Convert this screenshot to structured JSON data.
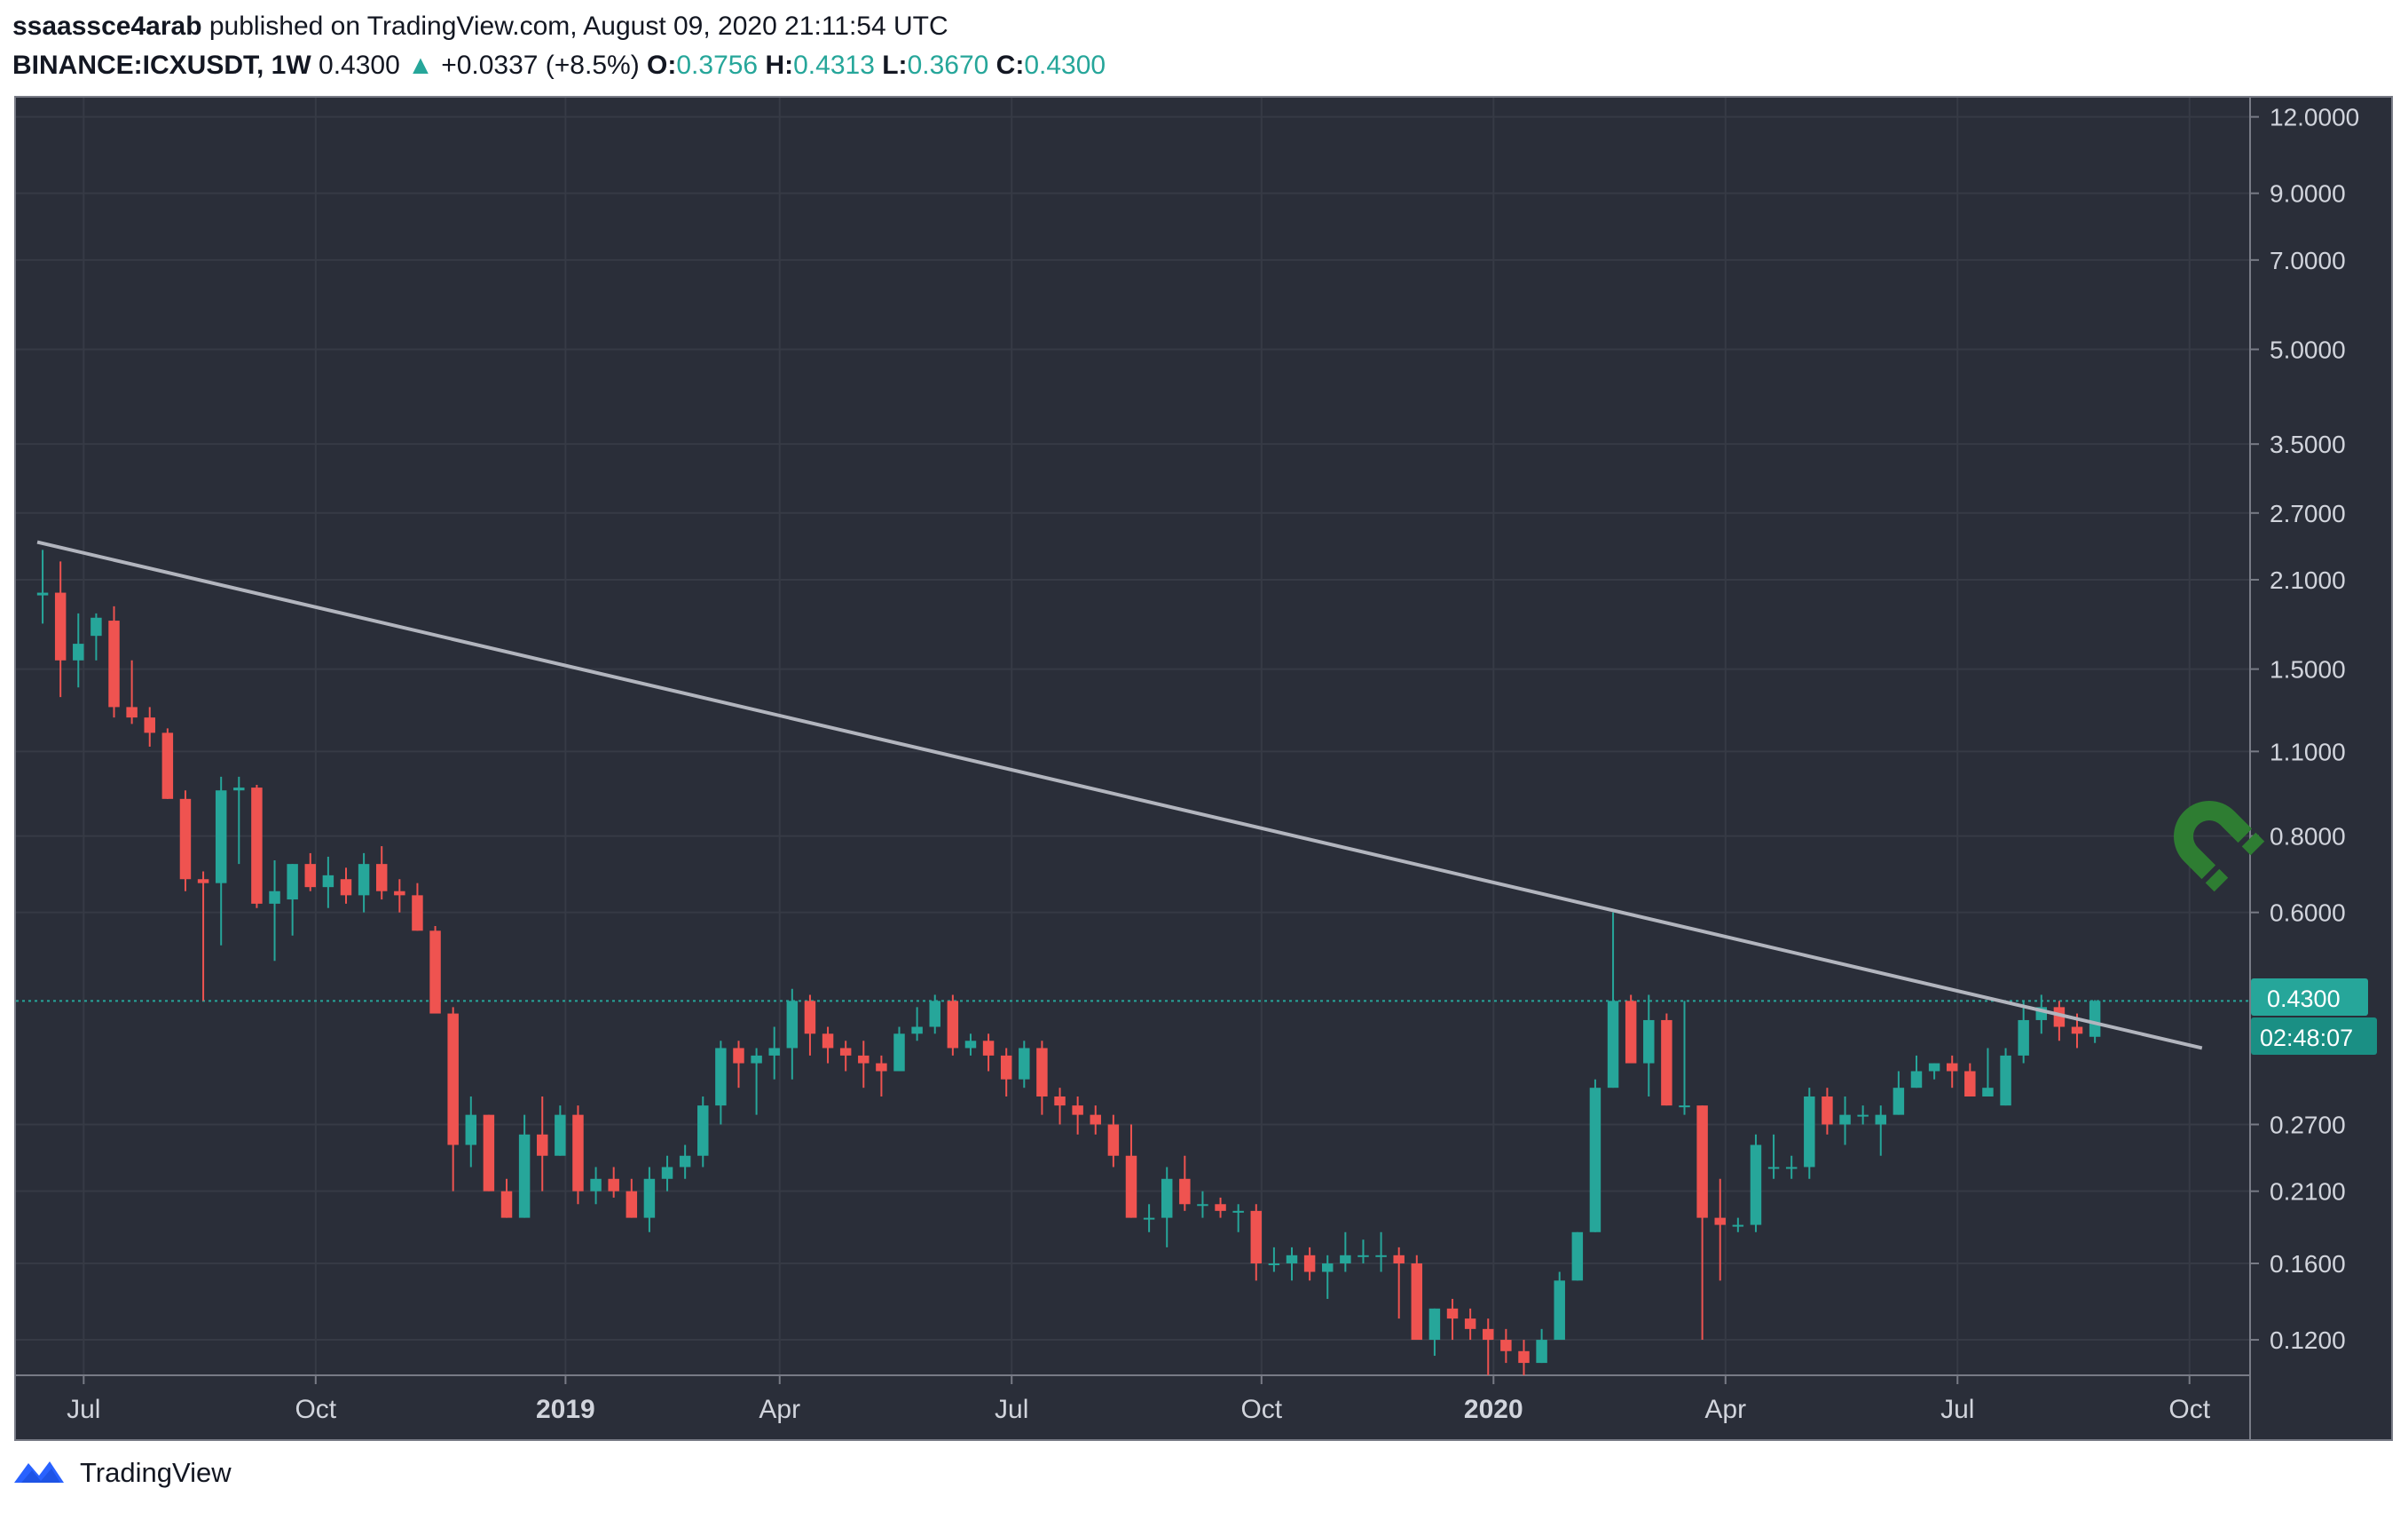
{
  "header": {
    "author": "ssaassce4arab",
    "published_text": "published on TradingView.com, August 09, 2020 21:11:54 UTC",
    "symbol": "BINANCE:ICXUSDT, 1W",
    "last": "0.4300",
    "arrow": "▲",
    "change": "+0.0337 (+8.5%)",
    "o_label": "O:",
    "o_value": "0.3756",
    "h_label": "H:",
    "h_value": "0.4313",
    "l_label": "L:",
    "l_value": "0.3670",
    "c_label": "C:",
    "c_value": "0.4300"
  },
  "footer": {
    "brand": "TradingView",
    "logo_icon": "tradingview-logo-icon"
  },
  "watermark_icon": "magnet-icon",
  "colors": {
    "background": "#2a2e39",
    "grid": "#363a45",
    "up": "#26a69a",
    "down": "#ef5350",
    "trendline": "#b2b5be",
    "axis_text": "#d1d4dc"
  },
  "chart_data": {
    "type": "candlestick",
    "scale": "log",
    "interval": "1W",
    "ylim": [
      0.105,
      12.9
    ],
    "y_ticks": [
      "12.0000",
      "9.0000",
      "7.0000",
      "5.0000",
      "3.5000",
      "2.7000",
      "2.1000",
      "1.5000",
      "1.1000",
      "0.8000",
      "0.6000",
      "0.2700",
      "0.2100",
      "0.1600",
      "0.1200"
    ],
    "hidden_tick_labels": [
      "0.4500",
      "0.3500"
    ],
    "x_ticks": [
      {
        "label": "Jul",
        "bold": false,
        "index": 2.3
      },
      {
        "label": "Oct",
        "bold": false,
        "index": 15.3
      },
      {
        "label": "2019",
        "bold": true,
        "index": 29.3
      },
      {
        "label": "Apr",
        "bold": false,
        "index": 41.3
      },
      {
        "label": "Jul",
        "bold": false,
        "index": 54.3
      },
      {
        "label": "Oct",
        "bold": false,
        "index": 68.3
      },
      {
        "label": "2020",
        "bold": true,
        "index": 81.3
      },
      {
        "label": "Apr",
        "bold": false,
        "index": 94.3
      },
      {
        "label": "Jul",
        "bold": false,
        "index": 107.3
      },
      {
        "label": "Oct",
        "bold": false,
        "index": 120.3
      }
    ],
    "price_label": "0.4300",
    "countdown_label": "02:48:07",
    "last_price": 0.43,
    "trendline": {
      "from": {
        "index": -0.3,
        "value": 2.42
      },
      "to": {
        "index": 121,
        "value": 0.36
      }
    },
    "candles": [
      [
        1.98,
        2.35,
        1.78,
        2.0
      ],
      [
        2.0,
        2.25,
        1.35,
        1.55
      ],
      [
        1.55,
        1.85,
        1.4,
        1.65
      ],
      [
        1.7,
        1.85,
        1.55,
        1.82
      ],
      [
        1.8,
        1.9,
        1.25,
        1.3
      ],
      [
        1.3,
        1.55,
        1.22,
        1.25
      ],
      [
        1.25,
        1.3,
        1.12,
        1.18
      ],
      [
        1.18,
        1.2,
        0.92,
        0.92
      ],
      [
        0.92,
        0.95,
        0.65,
        0.68
      ],
      [
        0.68,
        0.7,
        0.43,
        0.67
      ],
      [
        0.67,
        1.0,
        0.53,
        0.95
      ],
      [
        0.95,
        1.0,
        0.72,
        0.96
      ],
      [
        0.96,
        0.97,
        0.61,
        0.62
      ],
      [
        0.62,
        0.73,
        0.5,
        0.65
      ],
      [
        0.63,
        0.72,
        0.55,
        0.72
      ],
      [
        0.72,
        0.75,
        0.65,
        0.66
      ],
      [
        0.66,
        0.74,
        0.61,
        0.69
      ],
      [
        0.68,
        0.71,
        0.62,
        0.64
      ],
      [
        0.64,
        0.75,
        0.6,
        0.72
      ],
      [
        0.72,
        0.77,
        0.63,
        0.65
      ],
      [
        0.65,
        0.68,
        0.6,
        0.64
      ],
      [
        0.64,
        0.67,
        0.56,
        0.56
      ],
      [
        0.56,
        0.57,
        0.41,
        0.41
      ],
      [
        0.41,
        0.42,
        0.21,
        0.25
      ],
      [
        0.25,
        0.3,
        0.23,
        0.28
      ],
      [
        0.28,
        0.28,
        0.21,
        0.21
      ],
      [
        0.21,
        0.22,
        0.19,
        0.19
      ],
      [
        0.19,
        0.28,
        0.19,
        0.26
      ],
      [
        0.26,
        0.3,
        0.21,
        0.24
      ],
      [
        0.24,
        0.29,
        0.24,
        0.28
      ],
      [
        0.28,
        0.29,
        0.2,
        0.21
      ],
      [
        0.21,
        0.23,
        0.2,
        0.22
      ],
      [
        0.22,
        0.23,
        0.205,
        0.21
      ],
      [
        0.21,
        0.22,
        0.19,
        0.19
      ],
      [
        0.19,
        0.23,
        0.18,
        0.22
      ],
      [
        0.22,
        0.24,
        0.21,
        0.23
      ],
      [
        0.23,
        0.25,
        0.22,
        0.24
      ],
      [
        0.24,
        0.3,
        0.23,
        0.29
      ],
      [
        0.29,
        0.37,
        0.27,
        0.36
      ],
      [
        0.36,
        0.37,
        0.31,
        0.34
      ],
      [
        0.34,
        0.36,
        0.28,
        0.35
      ],
      [
        0.35,
        0.39,
        0.32,
        0.36
      ],
      [
        0.36,
        0.45,
        0.32,
        0.43
      ],
      [
        0.43,
        0.44,
        0.35,
        0.38
      ],
      [
        0.38,
        0.39,
        0.34,
        0.36
      ],
      [
        0.36,
        0.37,
        0.33,
        0.35
      ],
      [
        0.35,
        0.37,
        0.31,
        0.34
      ],
      [
        0.34,
        0.35,
        0.3,
        0.33
      ],
      [
        0.33,
        0.39,
        0.33,
        0.38
      ],
      [
        0.38,
        0.42,
        0.37,
        0.39
      ],
      [
        0.39,
        0.44,
        0.38,
        0.43
      ],
      [
        0.43,
        0.44,
        0.35,
        0.36
      ],
      [
        0.36,
        0.38,
        0.35,
        0.37
      ],
      [
        0.37,
        0.38,
        0.33,
        0.35
      ],
      [
        0.35,
        0.36,
        0.3,
        0.32
      ],
      [
        0.32,
        0.37,
        0.31,
        0.36
      ],
      [
        0.36,
        0.37,
        0.28,
        0.3
      ],
      [
        0.3,
        0.31,
        0.27,
        0.29
      ],
      [
        0.29,
        0.3,
        0.26,
        0.28
      ],
      [
        0.28,
        0.29,
        0.26,
        0.27
      ],
      [
        0.27,
        0.28,
        0.23,
        0.24
      ],
      [
        0.24,
        0.27,
        0.19,
        0.19
      ],
      [
        0.19,
        0.2,
        0.18,
        0.19
      ],
      [
        0.19,
        0.23,
        0.17,
        0.22
      ],
      [
        0.22,
        0.24,
        0.195,
        0.2
      ],
      [
        0.2,
        0.21,
        0.19,
        0.2
      ],
      [
        0.2,
        0.205,
        0.19,
        0.195
      ],
      [
        0.195,
        0.2,
        0.18,
        0.195
      ],
      [
        0.195,
        0.2,
        0.15,
        0.16
      ],
      [
        0.16,
        0.17,
        0.155,
        0.16
      ],
      [
        0.16,
        0.17,
        0.15,
        0.165
      ],
      [
        0.165,
        0.17,
        0.15,
        0.155
      ],
      [
        0.155,
        0.165,
        0.14,
        0.16
      ],
      [
        0.16,
        0.18,
        0.155,
        0.165
      ],
      [
        0.165,
        0.175,
        0.16,
        0.165
      ],
      [
        0.165,
        0.18,
        0.155,
        0.165
      ],
      [
        0.165,
        0.17,
        0.13,
        0.16
      ],
      [
        0.16,
        0.165,
        0.12,
        0.12
      ],
      [
        0.12,
        0.135,
        0.113,
        0.135
      ],
      [
        0.135,
        0.14,
        0.12,
        0.13
      ],
      [
        0.13,
        0.135,
        0.12,
        0.125
      ],
      [
        0.125,
        0.13,
        0.105,
        0.12
      ],
      [
        0.12,
        0.125,
        0.11,
        0.115
      ],
      [
        0.115,
        0.12,
        0.105,
        0.11
      ],
      [
        0.11,
        0.125,
        0.11,
        0.12
      ],
      [
        0.12,
        0.155,
        0.12,
        0.15
      ],
      [
        0.15,
        0.18,
        0.15,
        0.18
      ],
      [
        0.18,
        0.32,
        0.18,
        0.31
      ],
      [
        0.31,
        0.6,
        0.31,
        0.43
      ],
      [
        0.43,
        0.44,
        0.34,
        0.34
      ],
      [
        0.34,
        0.44,
        0.3,
        0.4
      ],
      [
        0.4,
        0.41,
        0.29,
        0.29
      ],
      [
        0.29,
        0.43,
        0.28,
        0.29
      ],
      [
        0.29,
        0.29,
        0.12,
        0.19
      ],
      [
        0.19,
        0.22,
        0.15,
        0.185
      ],
      [
        0.185,
        0.19,
        0.18,
        0.185
      ],
      [
        0.185,
        0.26,
        0.18,
        0.25
      ],
      [
        0.23,
        0.26,
        0.22,
        0.23
      ],
      [
        0.23,
        0.24,
        0.22,
        0.23
      ],
      [
        0.23,
        0.31,
        0.22,
        0.3
      ],
      [
        0.3,
        0.31,
        0.26,
        0.27
      ],
      [
        0.27,
        0.3,
        0.25,
        0.28
      ],
      [
        0.28,
        0.29,
        0.27,
        0.28
      ],
      [
        0.27,
        0.29,
        0.24,
        0.28
      ],
      [
        0.28,
        0.33,
        0.28,
        0.31
      ],
      [
        0.31,
        0.35,
        0.31,
        0.33
      ],
      [
        0.33,
        0.34,
        0.32,
        0.34
      ],
      [
        0.34,
        0.35,
        0.31,
        0.33
      ],
      [
        0.33,
        0.34,
        0.3,
        0.3
      ],
      [
        0.3,
        0.36,
        0.3,
        0.31
      ],
      [
        0.29,
        0.36,
        0.29,
        0.35
      ],
      [
        0.35,
        0.43,
        0.34,
        0.4
      ],
      [
        0.4,
        0.44,
        0.38,
        0.42
      ],
      [
        0.42,
        0.43,
        0.37,
        0.39
      ],
      [
        0.39,
        0.41,
        0.36,
        0.38
      ],
      [
        0.3756,
        0.4313,
        0.367,
        0.43
      ]
    ]
  }
}
